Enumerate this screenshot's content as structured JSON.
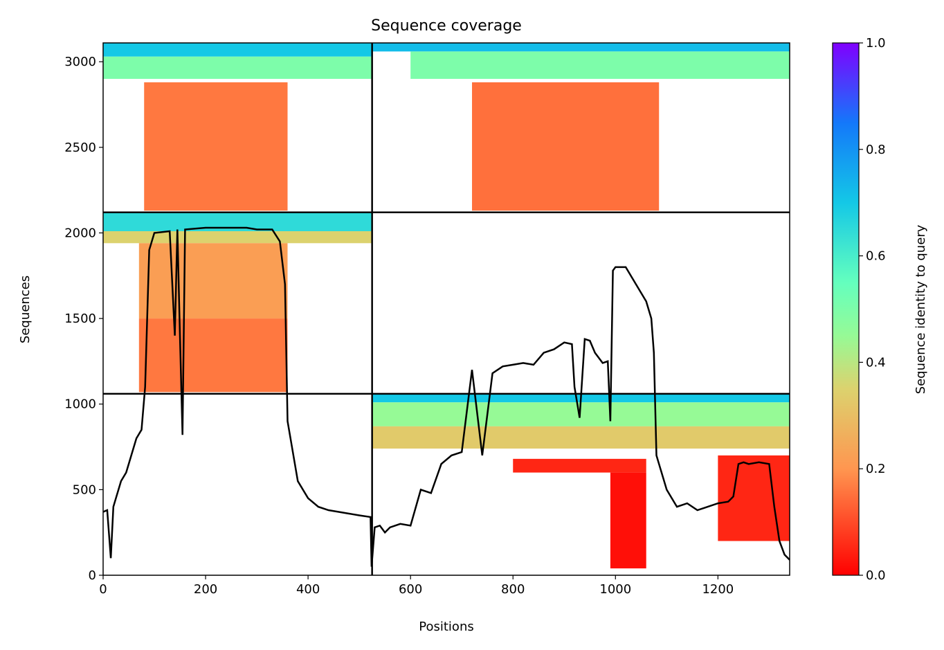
{
  "chart_data": {
    "type": "heatmap",
    "title": "Sequence coverage",
    "xlabel": "Positions",
    "ylabel": "Sequences",
    "xlim": [
      0,
      1340
    ],
    "ylim": [
      0,
      3110
    ],
    "xticks": [
      0,
      200,
      400,
      600,
      800,
      1000,
      1200
    ],
    "yticks": [
      0,
      500,
      1000,
      1500,
      2000,
      2500,
      3000
    ],
    "colorbar": {
      "label": "Sequence identity to query",
      "colormap": "rainbow_r",
      "range": [
        0,
        1
      ],
      "ticks": [
        "0.0",
        "0.2",
        "0.4",
        "0.6",
        "0.8",
        "1.0"
      ]
    },
    "grid": false,
    "block_divider_x": 525,
    "block_divider_y": [
      1060,
      2120
    ],
    "blocks": [
      {
        "x0": 0,
        "x1": 525,
        "y0": 2120,
        "y1": 3110,
        "bands": [
          {
            "x0": 0,
            "x1": 525,
            "y0": 3030,
            "y1": 3110,
            "identity": 0.7
          },
          {
            "x0": 0,
            "x1": 525,
            "y0": 2900,
            "y1": 3030,
            "identity": 0.5
          },
          {
            "x0": 80,
            "x1": 360,
            "y0": 2130,
            "y1": 2880,
            "identity": 0.16
          }
        ]
      },
      {
        "x0": 525,
        "x1": 1340,
        "y0": 2120,
        "y1": 3110,
        "bands": [
          {
            "x0": 525,
            "x1": 1340,
            "y0": 3060,
            "y1": 3110,
            "identity": 0.72
          },
          {
            "x0": 600,
            "x1": 1340,
            "y0": 2900,
            "y1": 3060,
            "identity": 0.5
          },
          {
            "x0": 720,
            "x1": 1085,
            "y0": 2130,
            "y1": 2880,
            "identity": 0.15
          }
        ]
      },
      {
        "x0": 0,
        "x1": 525,
        "y0": 1060,
        "y1": 2120,
        "bands": [
          {
            "x0": 0,
            "x1": 525,
            "y0": 2010,
            "y1": 2120,
            "identity": 0.65
          },
          {
            "x0": 0,
            "x1": 525,
            "y0": 1940,
            "y1": 2010,
            "identity": 0.35
          },
          {
            "x0": 70,
            "x1": 360,
            "y0": 1500,
            "y1": 1940,
            "identity": 0.22
          },
          {
            "x0": 70,
            "x1": 360,
            "y0": 1070,
            "y1": 1500,
            "identity": 0.16
          }
        ]
      },
      {
        "x0": 525,
        "x1": 1340,
        "y0": 0,
        "y1": 1060,
        "bands": [
          {
            "x0": 525,
            "x1": 1340,
            "y0": 1010,
            "y1": 1060,
            "identity": 0.7
          },
          {
            "x0": 525,
            "x1": 1340,
            "y0": 870,
            "y1": 1010,
            "identity": 0.45
          },
          {
            "x0": 525,
            "x1": 1340,
            "y0": 740,
            "y1": 870,
            "identity": 0.33
          },
          {
            "x0": 800,
            "x1": 1060,
            "y0": 600,
            "y1": 680,
            "identity": 0.05
          },
          {
            "x0": 990,
            "x1": 1060,
            "y0": 40,
            "y1": 600,
            "identity": 0.02
          },
          {
            "x0": 1200,
            "x1": 1340,
            "y0": 200,
            "y1": 700,
            "identity": 0.05
          }
        ]
      }
    ],
    "series": [
      {
        "x": [
          0,
          8,
          15,
          20,
          25,
          35,
          45,
          55,
          65,
          75,
          82,
          90,
          100,
          130,
          140,
          145,
          150,
          155,
          160,
          200,
          240,
          280,
          300,
          330,
          345,
          355,
          360,
          380,
          400,
          420,
          440,
          460,
          480,
          500,
          522,
          524,
          530,
          540,
          550,
          560,
          580,
          600,
          620,
          640,
          660,
          680,
          700,
          720,
          740,
          760,
          780,
          800,
          820,
          840,
          860,
          880,
          900,
          915,
          920,
          930,
          940,
          950,
          960,
          975,
          985,
          990,
          995,
          1000,
          1020,
          1040,
          1060,
          1070,
          1075,
          1080,
          1085,
          1090,
          1100,
          1120,
          1140,
          1160,
          1180,
          1200,
          1220,
          1230,
          1240,
          1250,
          1260,
          1280,
          1300,
          1310,
          1320,
          1330,
          1340
        ],
        "y": [
          370,
          380,
          100,
          400,
          450,
          550,
          600,
          700,
          800,
          850,
          1100,
          1900,
          2000,
          2010,
          1400,
          2020,
          1400,
          820,
          2020,
          2030,
          2030,
          2030,
          2020,
          2020,
          1950,
          1700,
          900,
          550,
          450,
          400,
          380,
          370,
          360,
          350,
          340,
          50,
          280,
          290,
          250,
          280,
          300,
          290,
          500,
          480,
          650,
          700,
          720,
          1200,
          700,
          1180,
          1220,
          1230,
          1240,
          1230,
          1300,
          1320,
          1360,
          1350,
          1100,
          920,
          1380,
          1370,
          1300,
          1240,
          1250,
          900,
          1780,
          1800,
          1800,
          1700,
          1600,
          1500,
          1300,
          700,
          650,
          600,
          500,
          400,
          420,
          380,
          400,
          420,
          430,
          460,
          650,
          660,
          650,
          660,
          650,
          400,
          200,
          120,
          90
        ]
      }
    ]
  }
}
